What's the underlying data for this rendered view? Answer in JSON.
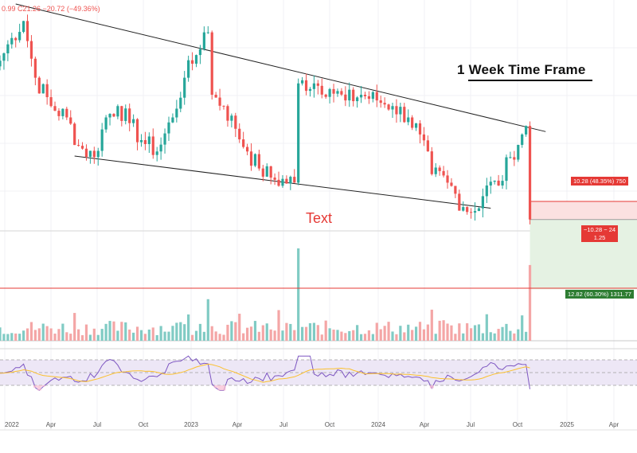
{
  "header": {
    "ohlc_text": "0.99  C21.26  −20.72 (−49.36%)"
  },
  "annotations": {
    "timeframe_title": "1 Week Time Frame",
    "note_text": "Text"
  },
  "position_tool": {
    "target_label": "10.28 (48.35%) 750",
    "entry_label_line1": "−10.28 − 24",
    "entry_label_line2": "1.25",
    "stop_label": "12.82 (60.30%) 1311.77"
  },
  "colors": {
    "up": "#26a69a",
    "down": "#ef5350",
    "vol_up": "#80cbc4",
    "vol_down": "#f4a6a6",
    "rsi_line": "#7e57c2",
    "rsi_ma": "#fbc02d",
    "rsi_band": "#ede7f6",
    "trendline": "#222222",
    "volume_level": "#e53935",
    "target_zone": "#fbe1e1",
    "stop_zone": "#e5f2e3"
  },
  "chart_data": {
    "type": "candlestick",
    "xlabel": "",
    "ylabel": "",
    "x_ticks": [
      "2022",
      "Apr",
      "Jul",
      "Oct",
      "2023",
      "Apr",
      "Jul",
      "Oct",
      "2024",
      "Apr",
      "Jul",
      "Oct",
      "2025",
      "Apr"
    ],
    "anchors": [
      {
        "i": 0,
        "v": 30
      },
      {
        "i": 3,
        "v": 34
      },
      {
        "i": 6,
        "v": 37
      },
      {
        "i": 9,
        "v": 27
      },
      {
        "i": 13,
        "v": 22
      },
      {
        "i": 17,
        "v": 20
      },
      {
        "i": 20,
        "v": 15
      },
      {
        "i": 24,
        "v": 13
      },
      {
        "i": 27,
        "v": 20
      },
      {
        "i": 30,
        "v": 22
      },
      {
        "i": 33,
        "v": 19
      },
      {
        "i": 36,
        "v": 16
      },
      {
        "i": 40,
        "v": 14
      },
      {
        "i": 44,
        "v": 20
      },
      {
        "i": 47,
        "v": 27
      },
      {
        "i": 50,
        "v": 31
      },
      {
        "i": 52,
        "v": 35
      },
      {
        "i": 53,
        "v": 35
      },
      {
        "i": 54,
        "v": 24
      },
      {
        "i": 57,
        "v": 22
      },
      {
        "i": 60,
        "v": 18
      },
      {
        "i": 63,
        "v": 14
      },
      {
        "i": 66,
        "v": 11
      },
      {
        "i": 70,
        "v": 9
      },
      {
        "i": 75,
        "v": 8.5
      },
      {
        "i": 76,
        "v": 26
      },
      {
        "i": 80,
        "v": 26
      },
      {
        "i": 84,
        "v": 25
      },
      {
        "i": 88,
        "v": 23
      },
      {
        "i": 92,
        "v": 24
      },
      {
        "i": 96,
        "v": 23
      },
      {
        "i": 100,
        "v": 22
      },
      {
        "i": 104,
        "v": 20
      },
      {
        "i": 107,
        "v": 17
      },
      {
        "i": 110,
        "v": 10
      },
      {
        "i": 114,
        "v": 8.5
      },
      {
        "i": 118,
        "v": 4.2
      },
      {
        "i": 121,
        "v": 3.5
      },
      {
        "i": 124,
        "v": 8
      },
      {
        "i": 127,
        "v": 8
      },
      {
        "i": 130,
        "v": 13
      },
      {
        "i": 133,
        "v": 17
      },
      {
        "i": 134,
        "v": 18.5
      },
      {
        "i": 135,
        "v": 2
      }
    ],
    "trendline_upper": {
      "from": [
        4,
        40
      ],
      "to": [
        139,
        17.5
      ]
    },
    "trendline_lower": {
      "from": [
        19,
        13.2
      ],
      "to": [
        125,
        4
      ]
    },
    "position": {
      "entry": 2,
      "target": 5.2,
      "stop": -10.3
    },
    "volume_level": 0.38,
    "volume_spikes": [
      {
        "i": 76,
        "v": 1.0
      },
      {
        "i": 135,
        "v": 0.82
      },
      {
        "i": 53,
        "v": 0.45
      }
    ],
    "rsi_band": [
      30,
      70
    ],
    "rsi_range": [
      20,
      80
    ]
  }
}
